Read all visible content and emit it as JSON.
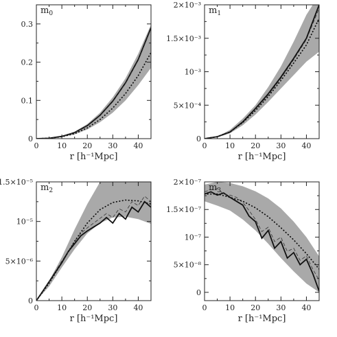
{
  "chart_data": [
    {
      "type": "line",
      "title": "m",
      "title_sub": "0",
      "xlabel": "r [h⁻¹Mpc]",
      "ylabel": "",
      "xlim": [
        0,
        45
      ],
      "ylim": [
        0,
        0.35
      ],
      "xticks": [
        0,
        10,
        20,
        30,
        40
      ],
      "xtick_labels": [
        "0",
        "10",
        "20",
        "30",
        "40"
      ],
      "yticks": [
        0,
        0.1,
        0.2,
        0.3
      ],
      "ytick_labels": [
        "0",
        "0.1",
        "0.2",
        "0.3"
      ],
      "band": {
        "x": [
          0,
          5,
          10,
          15,
          20,
          25,
          30,
          35,
          40,
          45
        ],
        "lower": [
          0,
          0.0006,
          0.004,
          0.011,
          0.024,
          0.043,
          0.068,
          0.1,
          0.14,
          0.185
        ],
        "upper": [
          0,
          0.0012,
          0.007,
          0.018,
          0.038,
          0.068,
          0.108,
          0.158,
          0.222,
          0.298
        ]
      },
      "series": [
        {
          "style": "solid",
          "x": [
            0,
            5,
            10,
            15,
            20,
            25,
            30,
            35,
            40,
            45
          ],
          "y": [
            0,
            0.001,
            0.006,
            0.016,
            0.034,
            0.061,
            0.098,
            0.146,
            0.207,
            0.29
          ]
        },
        {
          "style": "dashed",
          "x": [
            0,
            5,
            10,
            15,
            20,
            25,
            30,
            35,
            40,
            45
          ],
          "y": [
            0,
            0.001,
            0.006,
            0.016,
            0.033,
            0.06,
            0.097,
            0.145,
            0.205,
            0.287
          ]
        },
        {
          "style": "dotted",
          "x": [
            0,
            5,
            10,
            15,
            20,
            25,
            30,
            35,
            40,
            45
          ],
          "y": [
            0,
            0.001,
            0.005,
            0.013,
            0.028,
            0.05,
            0.08,
            0.118,
            0.165,
            0.225
          ]
        }
      ]
    },
    {
      "type": "line",
      "title": "m",
      "title_sub": "1",
      "xlabel": "r [h⁻¹Mpc]",
      "ylabel": "",
      "xlim": [
        0,
        45
      ],
      "ylim": [
        0,
        0.002
      ],
      "xticks": [
        0,
        10,
        20,
        30,
        40
      ],
      "xtick_labels": [
        "0",
        "10",
        "20",
        "30",
        "40"
      ],
      "yticks": [
        0,
        0.0005,
        0.001,
        0.0015,
        0.002
      ],
      "ytick_labels": [
        "0",
        "5×10⁻⁴",
        "10⁻³",
        "1.5×10⁻³",
        "2×10⁻³"
      ],
      "band": {
        "x": [
          0,
          5,
          10,
          15,
          20,
          25,
          30,
          35,
          40,
          45
        ],
        "lower": [
          0,
          2e-05,
          8e-05,
          0.0002,
          0.00036,
          0.00055,
          0.00075,
          0.00095,
          0.00115,
          0.0013
        ],
        "upper": [
          0,
          3e-05,
          0.00013,
          0.0003,
          0.0005,
          0.00077,
          0.00108,
          0.00145,
          0.00185,
          0.00215
        ]
      },
      "series": [
        {
          "style": "solid",
          "x": [
            0,
            5,
            10,
            15,
            20,
            25,
            30,
            35,
            40,
            45
          ],
          "y": [
            0,
            3e-05,
            0.0001,
            0.00025,
            0.00045,
            0.00067,
            0.00092,
            0.0012,
            0.0015,
            0.002
          ]
        },
        {
          "style": "dashed",
          "x": [
            0,
            5,
            10,
            15,
            20,
            25,
            30,
            35,
            40,
            45
          ],
          "y": [
            0,
            3e-05,
            0.0001,
            0.00024,
            0.00044,
            0.00065,
            0.0009,
            0.00118,
            0.00148,
            0.00195
          ]
        },
        {
          "style": "dotted",
          "x": [
            0,
            5,
            10,
            15,
            20,
            25,
            30,
            35,
            40,
            45
          ],
          "y": [
            0,
            3e-05,
            0.0001,
            0.00024,
            0.00042,
            0.00063,
            0.00087,
            0.00113,
            0.0014,
            0.0018
          ]
        }
      ]
    },
    {
      "type": "line",
      "title": "m",
      "title_sub": "2",
      "xlabel": "r [h⁻¹Mpc]",
      "ylabel": "",
      "xlim": [
        0,
        45
      ],
      "ylim": [
        0,
        1.5e-05
      ],
      "xticks": [
        0,
        10,
        20,
        30,
        40
      ],
      "xtick_labels": [
        "0",
        "10",
        "20",
        "30",
        "40"
      ],
      "yticks": [
        0,
        5e-06,
        1e-05,
        1.5e-05
      ],
      "ytick_labels": [
        "0",
        "5×10⁻⁶",
        "10⁻⁵",
        "1.5×10⁻⁵"
      ],
      "band": {
        "x": [
          0,
          5,
          10,
          15,
          20,
          25,
          30,
          35,
          40,
          45
        ],
        "lower": [
          0,
          1.8e-06,
          4.2e-06,
          6.5e-06,
          8.5e-06,
          9.8e-06,
          1.05e-05,
          1.06e-05,
          1.03e-05,
          9.7e-06
        ],
        "upper": [
          0,
          2.5e-06,
          5.5e-06,
          9e-06,
          1.22e-05,
          1.5e-05,
          1.6e-05,
          1.6e-05,
          1.6e-05,
          1.6e-05
        ]
      },
      "series": [
        {
          "style": "solid",
          "x": [
            0,
            2.5,
            5,
            7.5,
            10,
            12.5,
            15,
            17.5,
            20,
            22.5,
            25,
            27.5,
            30,
            32.5,
            35,
            37.5,
            40,
            42.5,
            45
          ],
          "y": [
            0,
            1.2e-06,
            2.4e-06,
            3.6e-06,
            4.8e-06,
            6.2e-06,
            7.2e-06,
            8.2e-06,
            8.8e-06,
            9.3e-06,
            9.8e-06,
            1.05e-05,
            9.8e-06,
            1.1e-05,
            1.03e-05,
            1.18e-05,
            1.12e-05,
            1.25e-05,
            1.18e-05
          ]
        },
        {
          "style": "dashed",
          "x": [
            0,
            2.5,
            5,
            7.5,
            10,
            12.5,
            15,
            17.5,
            20,
            22.5,
            25,
            27.5,
            30,
            32.5,
            35,
            37.5,
            40,
            42.5,
            45
          ],
          "y": [
            0,
            1.2e-06,
            2.4e-06,
            3.7e-06,
            5e-06,
            6.2e-06,
            7.5e-06,
            8.5e-06,
            9.2e-06,
            9.8e-06,
            1.04e-05,
            1.1e-05,
            1.05e-05,
            1.16e-05,
            1.12e-05,
            1.25e-05,
            1.2e-05,
            1.32e-05,
            1.25e-05
          ]
        },
        {
          "style": "dotted",
          "x": [
            0,
            5,
            10,
            15,
            20,
            25,
            30,
            35,
            40,
            45
          ],
          "y": [
            0,
            2.2e-06,
            4.8e-06,
            7.5e-06,
            9.8e-06,
            1.15e-05,
            1.24e-05,
            1.27e-05,
            1.26e-05,
            1.22e-05
          ]
        }
      ]
    },
    {
      "type": "line",
      "title": "m",
      "title_sub": "3",
      "xlabel": "r [h⁻¹Mpc]",
      "ylabel": "",
      "xlim": [
        0,
        45
      ],
      "ylim": [
        -1.5e-08,
        2e-07
      ],
      "xticks": [
        0,
        10,
        20,
        30,
        40
      ],
      "xtick_labels": [
        "0",
        "10",
        "20",
        "30",
        "40"
      ],
      "yticks": [
        0,
        5e-08,
        1e-07,
        1.5e-07,
        2e-07
      ],
      "ytick_labels": [
        "0",
        "5×10⁻⁸",
        "10⁻⁷",
        "1.5×10⁻⁷",
        "2×10⁻⁷"
      ],
      "band": {
        "x": [
          0,
          5,
          10,
          15,
          20,
          25,
          30,
          35,
          40,
          45
        ],
        "lower": [
          1.65e-07,
          1.57e-07,
          1.48e-07,
          1.32e-07,
          1.12e-07,
          8.8e-08,
          6.2e-08,
          3.8e-08,
          1.6e-08,
          0.0
        ],
        "upper": [
          1.95e-07,
          2e-07,
          1.98e-07,
          1.92e-07,
          1.83e-07,
          1.7e-07,
          1.52e-07,
          1.28e-07,
          1e-07,
          6.5e-08
        ]
      },
      "series": [
        {
          "style": "solid",
          "x": [
            0,
            2.5,
            5,
            7.5,
            10,
            12.5,
            15,
            17.5,
            20,
            22.5,
            25,
            27.5,
            30,
            32.5,
            35,
            37.5,
            40,
            42.5,
            45
          ],
          "y": [
            1.78e-07,
            1.82e-07,
            1.76e-07,
            1.8e-07,
            1.72e-07,
            1.65e-07,
            1.58e-07,
            1.38e-07,
            1.28e-07,
            9.8e-08,
            1.12e-07,
            8e-08,
            9.2e-08,
            6.2e-08,
            7.2e-08,
            5e-08,
            6e-08,
            3.4e-08,
            2e-09
          ]
        },
        {
          "style": "dashed",
          "x": [
            0,
            2.5,
            5,
            7.5,
            10,
            12.5,
            15,
            17.5,
            20,
            22.5,
            25,
            27.5,
            30,
            32.5,
            35,
            37.5,
            40,
            42.5,
            45
          ],
          "y": [
            1.82e-07,
            1.86e-07,
            1.88e-07,
            1.78e-07,
            1.76e-07,
            1.72e-07,
            1.63e-07,
            1.48e-07,
            1.32e-07,
            1.1e-07,
            1.18e-07,
            9.2e-08,
            1e-07,
            7.4e-08,
            8e-08,
            5.8e-08,
            6.6e-08,
            4.2e-08,
            2.2e-08
          ]
        },
        {
          "style": "dotted",
          "x": [
            0,
            5,
            10,
            15,
            20,
            25,
            30,
            35,
            40,
            45
          ],
          "y": [
            1.78e-07,
            1.78e-07,
            1.72e-07,
            1.65e-07,
            1.53e-07,
            1.37e-07,
            1.17e-07,
            9.5e-08,
            7e-08,
            4.2e-08
          ]
        }
      ]
    }
  ]
}
